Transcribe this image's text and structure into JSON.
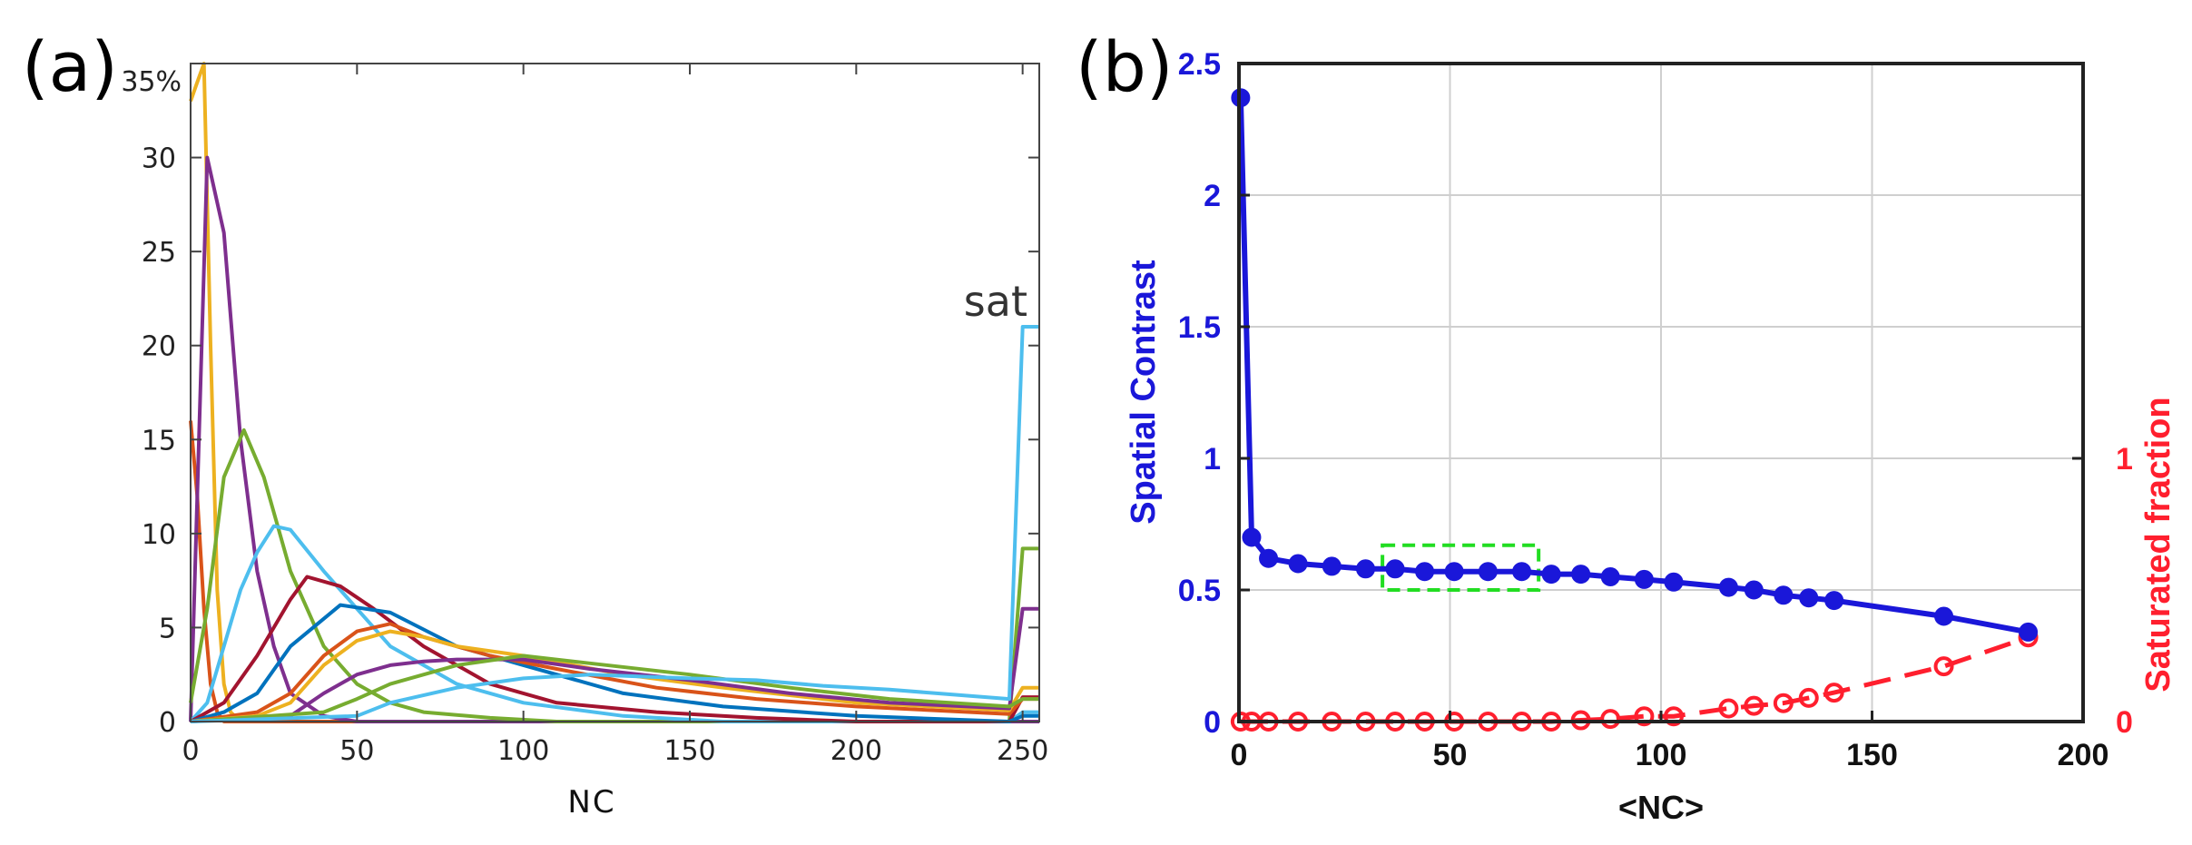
{
  "panel_a_label": "(a)",
  "panel_b_label": "(b)",
  "chart_data": [
    {
      "type": "line",
      "panel": "(a)",
      "xlabel": "NC",
      "ylabel": "",
      "xlim": [
        0,
        255
      ],
      "ylim": [
        0,
        35
      ],
      "xticks": [
        0,
        50,
        100,
        150,
        200,
        250
      ],
      "yticks": [
        0,
        5,
        10,
        15,
        20,
        25,
        30
      ],
      "ytick_top_label": "35%",
      "annotation": "sat",
      "grid": false,
      "series": [
        {
          "color": "#edb120",
          "points": [
            [
              0,
              33
            ],
            [
              2,
              34
            ],
            [
              4,
              35
            ],
            [
              6,
              20
            ],
            [
              8,
              7
            ],
            [
              10,
              2
            ],
            [
              12,
              0.5
            ],
            [
              15,
              0
            ],
            [
              255,
              0
            ]
          ]
        },
        {
          "color": "#d95319",
          "points": [
            [
              0,
              16
            ],
            [
              2,
              12
            ],
            [
              4,
              6
            ],
            [
              6,
              2
            ],
            [
              8,
              0.5
            ],
            [
              10,
              0
            ],
            [
              255,
              0
            ]
          ]
        },
        {
          "color": "#7e2f8e",
          "points": [
            [
              0,
              0
            ],
            [
              3,
              18
            ],
            [
              5,
              30
            ],
            [
              10,
              26
            ],
            [
              15,
              15
            ],
            [
              20,
              8
            ],
            [
              25,
              4
            ],
            [
              30,
              1.5
            ],
            [
              40,
              0.3
            ],
            [
              50,
              0
            ],
            [
              255,
              0
            ]
          ]
        },
        {
          "color": "#77ac30",
          "points": [
            [
              0,
              1
            ],
            [
              5,
              6
            ],
            [
              10,
              13
            ],
            [
              16,
              15.5
            ],
            [
              22,
              13
            ],
            [
              30,
              8
            ],
            [
              40,
              4
            ],
            [
              50,
              2
            ],
            [
              60,
              1
            ],
            [
              70,
              0.5
            ],
            [
              90,
              0.2
            ],
            [
              110,
              0
            ],
            [
              246,
              0
            ],
            [
              250,
              9.2
            ],
            [
              255,
              9.2
            ]
          ]
        },
        {
          "color": "#4dbeee",
          "points": [
            [
              0,
              0
            ],
            [
              5,
              1
            ],
            [
              10,
              4
            ],
            [
              15,
              7
            ],
            [
              20,
              9
            ],
            [
              25,
              10.4
            ],
            [
              30,
              10.2
            ],
            [
              40,
              8
            ],
            [
              50,
              6
            ],
            [
              60,
              4
            ],
            [
              70,
              3
            ],
            [
              80,
              2
            ],
            [
              100,
              1
            ],
            [
              130,
              0.3
            ],
            [
              160,
              0
            ],
            [
              246,
              0
            ],
            [
              250,
              0.5
            ],
            [
              255,
              0.5
            ]
          ]
        },
        {
          "color": "#a2142f",
          "points": [
            [
              0,
              0
            ],
            [
              10,
              1
            ],
            [
              20,
              3.5
            ],
            [
              30,
              6.5
            ],
            [
              35,
              7.7
            ],
            [
              45,
              7.2
            ],
            [
              55,
              6
            ],
            [
              70,
              4
            ],
            [
              90,
              2
            ],
            [
              110,
              1
            ],
            [
              140,
              0.5
            ],
            [
              170,
              0.2
            ],
            [
              200,
              0
            ],
            [
              246,
              0
            ],
            [
              250,
              1.3
            ],
            [
              255,
              1.3
            ]
          ]
        },
        {
          "color": "#0072bd",
          "points": [
            [
              0,
              0
            ],
            [
              10,
              0.5
            ],
            [
              20,
              1.5
            ],
            [
              30,
              4
            ],
            [
              45,
              6.2
            ],
            [
              60,
              5.8
            ],
            [
              80,
              4
            ],
            [
              100,
              3
            ],
            [
              130,
              1.5
            ],
            [
              160,
              0.8
            ],
            [
              200,
              0.3
            ],
            [
              246,
              0
            ],
            [
              250,
              0.3
            ],
            [
              255,
              0.3
            ]
          ]
        },
        {
          "color": "#d95319",
          "points": [
            [
              0,
              0
            ],
            [
              20,
              0.5
            ],
            [
              30,
              1.5
            ],
            [
              40,
              3.5
            ],
            [
              50,
              4.8
            ],
            [
              60,
              5.2
            ],
            [
              70,
              4.5
            ],
            [
              90,
              3.5
            ],
            [
              110,
              2.8
            ],
            [
              140,
              1.8
            ],
            [
              170,
              1.2
            ],
            [
              200,
              0.8
            ],
            [
              246,
              0.4
            ],
            [
              250,
              1.2
            ],
            [
              255,
              1.2
            ]
          ]
        },
        {
          "color": "#edb120",
          "points": [
            [
              0,
              0
            ],
            [
              20,
              0.3
            ],
            [
              30,
              1
            ],
            [
              40,
              3
            ],
            [
              50,
              4.3
            ],
            [
              60,
              4.8
            ],
            [
              70,
              4.5
            ],
            [
              80,
              4
            ],
            [
              100,
              3.5
            ],
            [
              130,
              2.5
            ],
            [
              160,
              1.8
            ],
            [
              200,
              1
            ],
            [
              246,
              0.6
            ],
            [
              250,
              1.8
            ],
            [
              255,
              1.8
            ]
          ]
        },
        {
          "color": "#7e2f8e",
          "points": [
            [
              0,
              0
            ],
            [
              30,
              0.3
            ],
            [
              40,
              1.5
            ],
            [
              50,
              2.5
            ],
            [
              60,
              3
            ],
            [
              70,
              3.2
            ],
            [
              80,
              3.3
            ],
            [
              100,
              3.3
            ],
            [
              120,
              2.8
            ],
            [
              150,
              2.2
            ],
            [
              180,
              1.5
            ],
            [
              210,
              1
            ],
            [
              246,
              0.7
            ],
            [
              250,
              6
            ],
            [
              255,
              6
            ]
          ]
        },
        {
          "color": "#77ac30",
          "points": [
            [
              0,
              0
            ],
            [
              40,
              0.5
            ],
            [
              50,
              1.2
            ],
            [
              60,
              2
            ],
            [
              80,
              3
            ],
            [
              100,
              3.5
            ],
            [
              120,
              3.1
            ],
            [
              150,
              2.5
            ],
            [
              180,
              1.8
            ],
            [
              210,
              1.2
            ],
            [
              246,
              0.8
            ],
            [
              250,
              1.2
            ],
            [
              255,
              1.2
            ]
          ]
        },
        {
          "color": "#4dbeee",
          "points": [
            [
              0,
              0
            ],
            [
              50,
              0.3
            ],
            [
              60,
              1
            ],
            [
              80,
              1.8
            ],
            [
              100,
              2.3
            ],
            [
              120,
              2.5
            ],
            [
              150,
              2.3
            ],
            [
              170,
              2.2
            ],
            [
              190,
              1.9
            ],
            [
              210,
              1.7
            ],
            [
              246,
              1.2
            ],
            [
              250,
              21
            ],
            [
              255,
              21
            ]
          ]
        }
      ]
    },
    {
      "type": "line",
      "panel": "(b)",
      "xlabel": "<NC>",
      "ylabel": "Spatial Contrast",
      "y2label": "Saturated fraction",
      "xlim": [
        0,
        200
      ],
      "ylim": [
        0,
        2.5
      ],
      "y2lim": [
        0,
        2.5
      ],
      "xticks": [
        0,
        50,
        100,
        150,
        200
      ],
      "yticks": [
        0,
        0.5,
        1,
        1.5,
        2,
        2.5
      ],
      "y2ticks": [
        0,
        1
      ],
      "grid": true,
      "highlight_box": {
        "x": [
          34,
          71
        ],
        "y": [
          0.5,
          0.67
        ],
        "color": "#22dd22"
      },
      "series": [
        {
          "axis": "left",
          "color": "#1a17d9",
          "x": [
            0.4,
            3,
            7,
            14,
            22,
            30,
            37,
            44,
            51,
            59,
            67,
            74,
            81,
            88,
            96,
            103,
            116,
            122,
            129,
            135,
            141,
            167,
            187
          ],
          "y": [
            2.37,
            0.7,
            0.62,
            0.6,
            0.59,
            0.58,
            0.58,
            0.57,
            0.57,
            0.57,
            0.57,
            0.56,
            0.56,
            0.55,
            0.54,
            0.53,
            0.51,
            0.5,
            0.48,
            0.47,
            0.46,
            0.4,
            0.34
          ]
        },
        {
          "axis": "right",
          "color": "#ff1f2e",
          "x": [
            0.4,
            3,
            7,
            14,
            22,
            30,
            37,
            44,
            51,
            59,
            67,
            74,
            81,
            88,
            96,
            103,
            116,
            122,
            129,
            135,
            141,
            167,
            187
          ],
          "y": [
            0,
            0,
            0,
            0,
            0,
            0,
            0,
            0,
            0,
            0,
            0,
            0,
            0.005,
            0.01,
            0.02,
            0.02,
            0.05,
            0.06,
            0.07,
            0.09,
            0.11,
            0.21,
            0.32
          ]
        }
      ]
    }
  ]
}
